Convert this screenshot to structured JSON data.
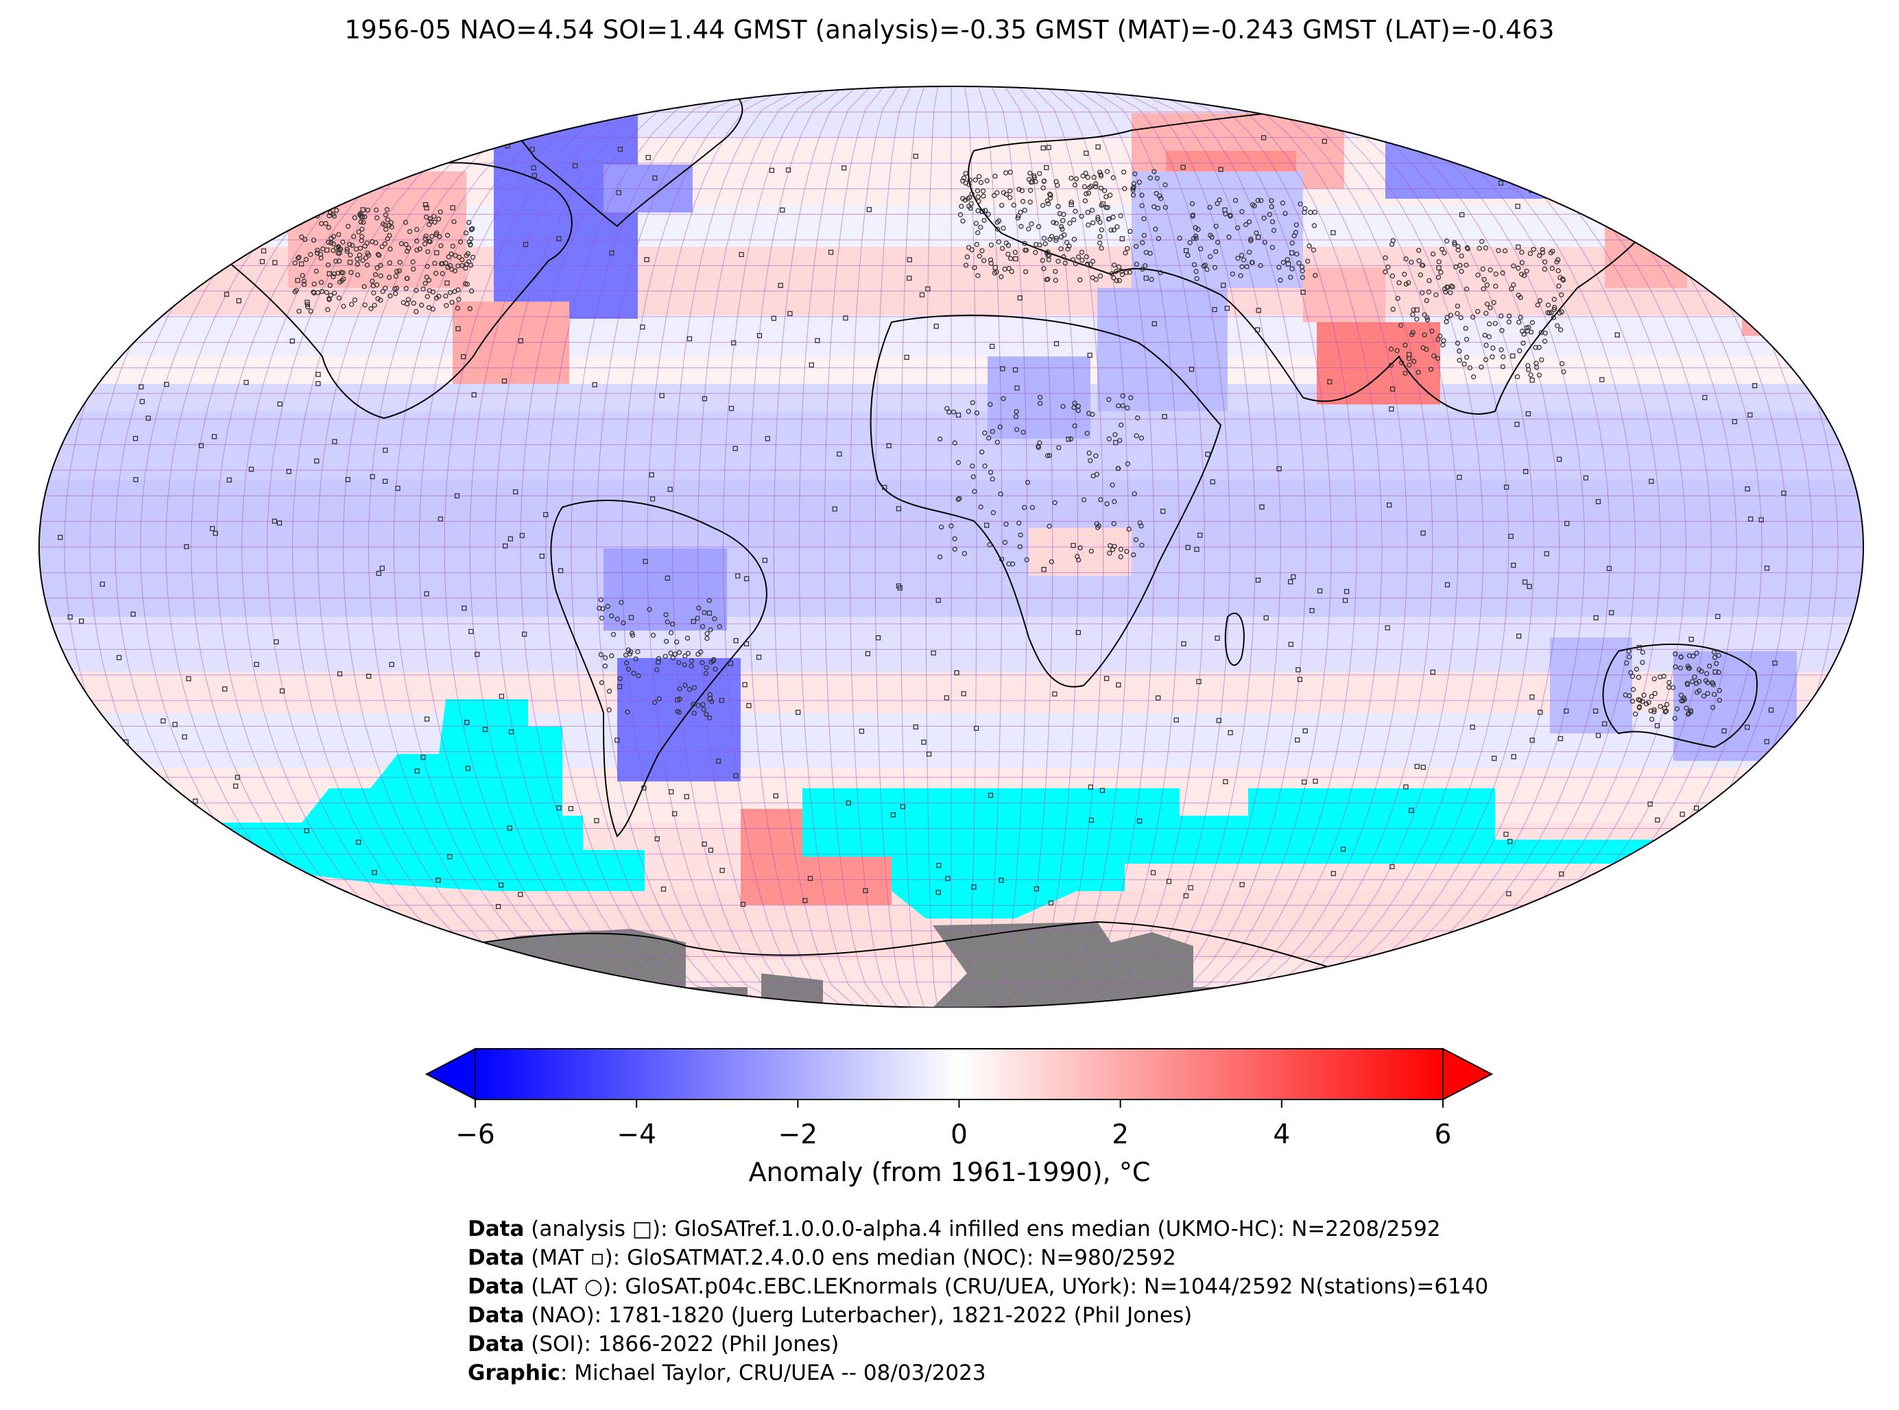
{
  "title": "1956-05 NAO=4.54 SOI=1.44 GMST (analysis)=-0.35 GMST (MAT)=-0.243 GMST (LAT)=-0.463",
  "colorbar": {
    "label": "Anomaly (from 1961-1990), °C",
    "ticks": [
      "−6",
      "−4",
      "−2",
      "0",
      "2",
      "4",
      "6"
    ],
    "min": -6,
    "max": 6,
    "extend": "both",
    "cmap": "bwr",
    "low_color": "#0000ff",
    "mid_color": "#ffffff",
    "high_color": "#ff0000"
  },
  "map": {
    "projection": "Robinson",
    "ocean_missing_color": "#00ffff",
    "land_missing_color": "#808080",
    "grid_line_color": "#a050c0",
    "grid_resolution_deg": 5
  },
  "credits": [
    {
      "bold": "Data",
      "text": " (analysis □): GloSATref.1.0.0.0-alpha.4 infilled ens median (UKMO-HC): N=2208/2592"
    },
    {
      "bold": "Data",
      "text": " (MAT ▫): GloSATMAT.2.4.0.0 ens median (NOC): N=980/2592"
    },
    {
      "bold": "Data",
      "text": " (LAT ○): GloSAT.p04c.EBC.LEKnormals (CRU/UEA, UYork): N=1044/2592 N(stations)=6140"
    },
    {
      "bold": "Data",
      "text": " (NAO): 1781-1820 (Juerg Luterbacher), 1821-2022 (Phil Jones)"
    },
    {
      "bold": "Data",
      "text": " (SOI): 1866-2022 (Phil Jones)"
    },
    {
      "bold": "Graphic",
      "text": ": Michael Taylor, CRU/UEA -- 08/03/2023"
    }
  ]
}
